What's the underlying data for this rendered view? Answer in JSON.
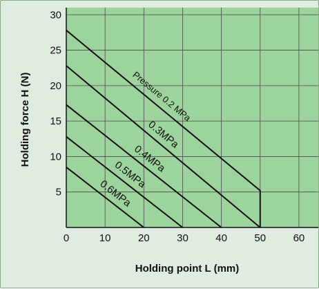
{
  "chart_data": {
    "type": "line",
    "xlabel": "Holding point L (mm)",
    "ylabel": "Holding force H (N)",
    "xlim": [
      0,
      65
    ],
    "ylim": [
      0,
      31
    ],
    "x_ticks": [
      0,
      10,
      20,
      30,
      40,
      50,
      60
    ],
    "y_ticks": [
      5,
      10,
      15,
      20,
      25,
      30
    ],
    "grid": true,
    "colors": {
      "plot_background": "#9dd39d",
      "frame_background": "#e0ece0",
      "line": "#111111"
    },
    "series": [
      {
        "label": "Pressure 0.2 MPa",
        "x": [
          0,
          50,
          50
        ],
        "y": [
          27.8,
          5.2,
          0
        ]
      },
      {
        "label": "0.3MPa",
        "x": [
          0,
          50
        ],
        "y": [
          22.8,
          0
        ]
      },
      {
        "label": "0.4MPa",
        "x": [
          0,
          40
        ],
        "y": [
          17.3,
          0
        ]
      },
      {
        "label": "0.5MPa",
        "x": [
          0,
          30
        ],
        "y": [
          12.8,
          0
        ]
      },
      {
        "label": "0.6MPa",
        "x": [
          0,
          20
        ],
        "y": [
          8.5,
          0
        ]
      }
    ]
  }
}
